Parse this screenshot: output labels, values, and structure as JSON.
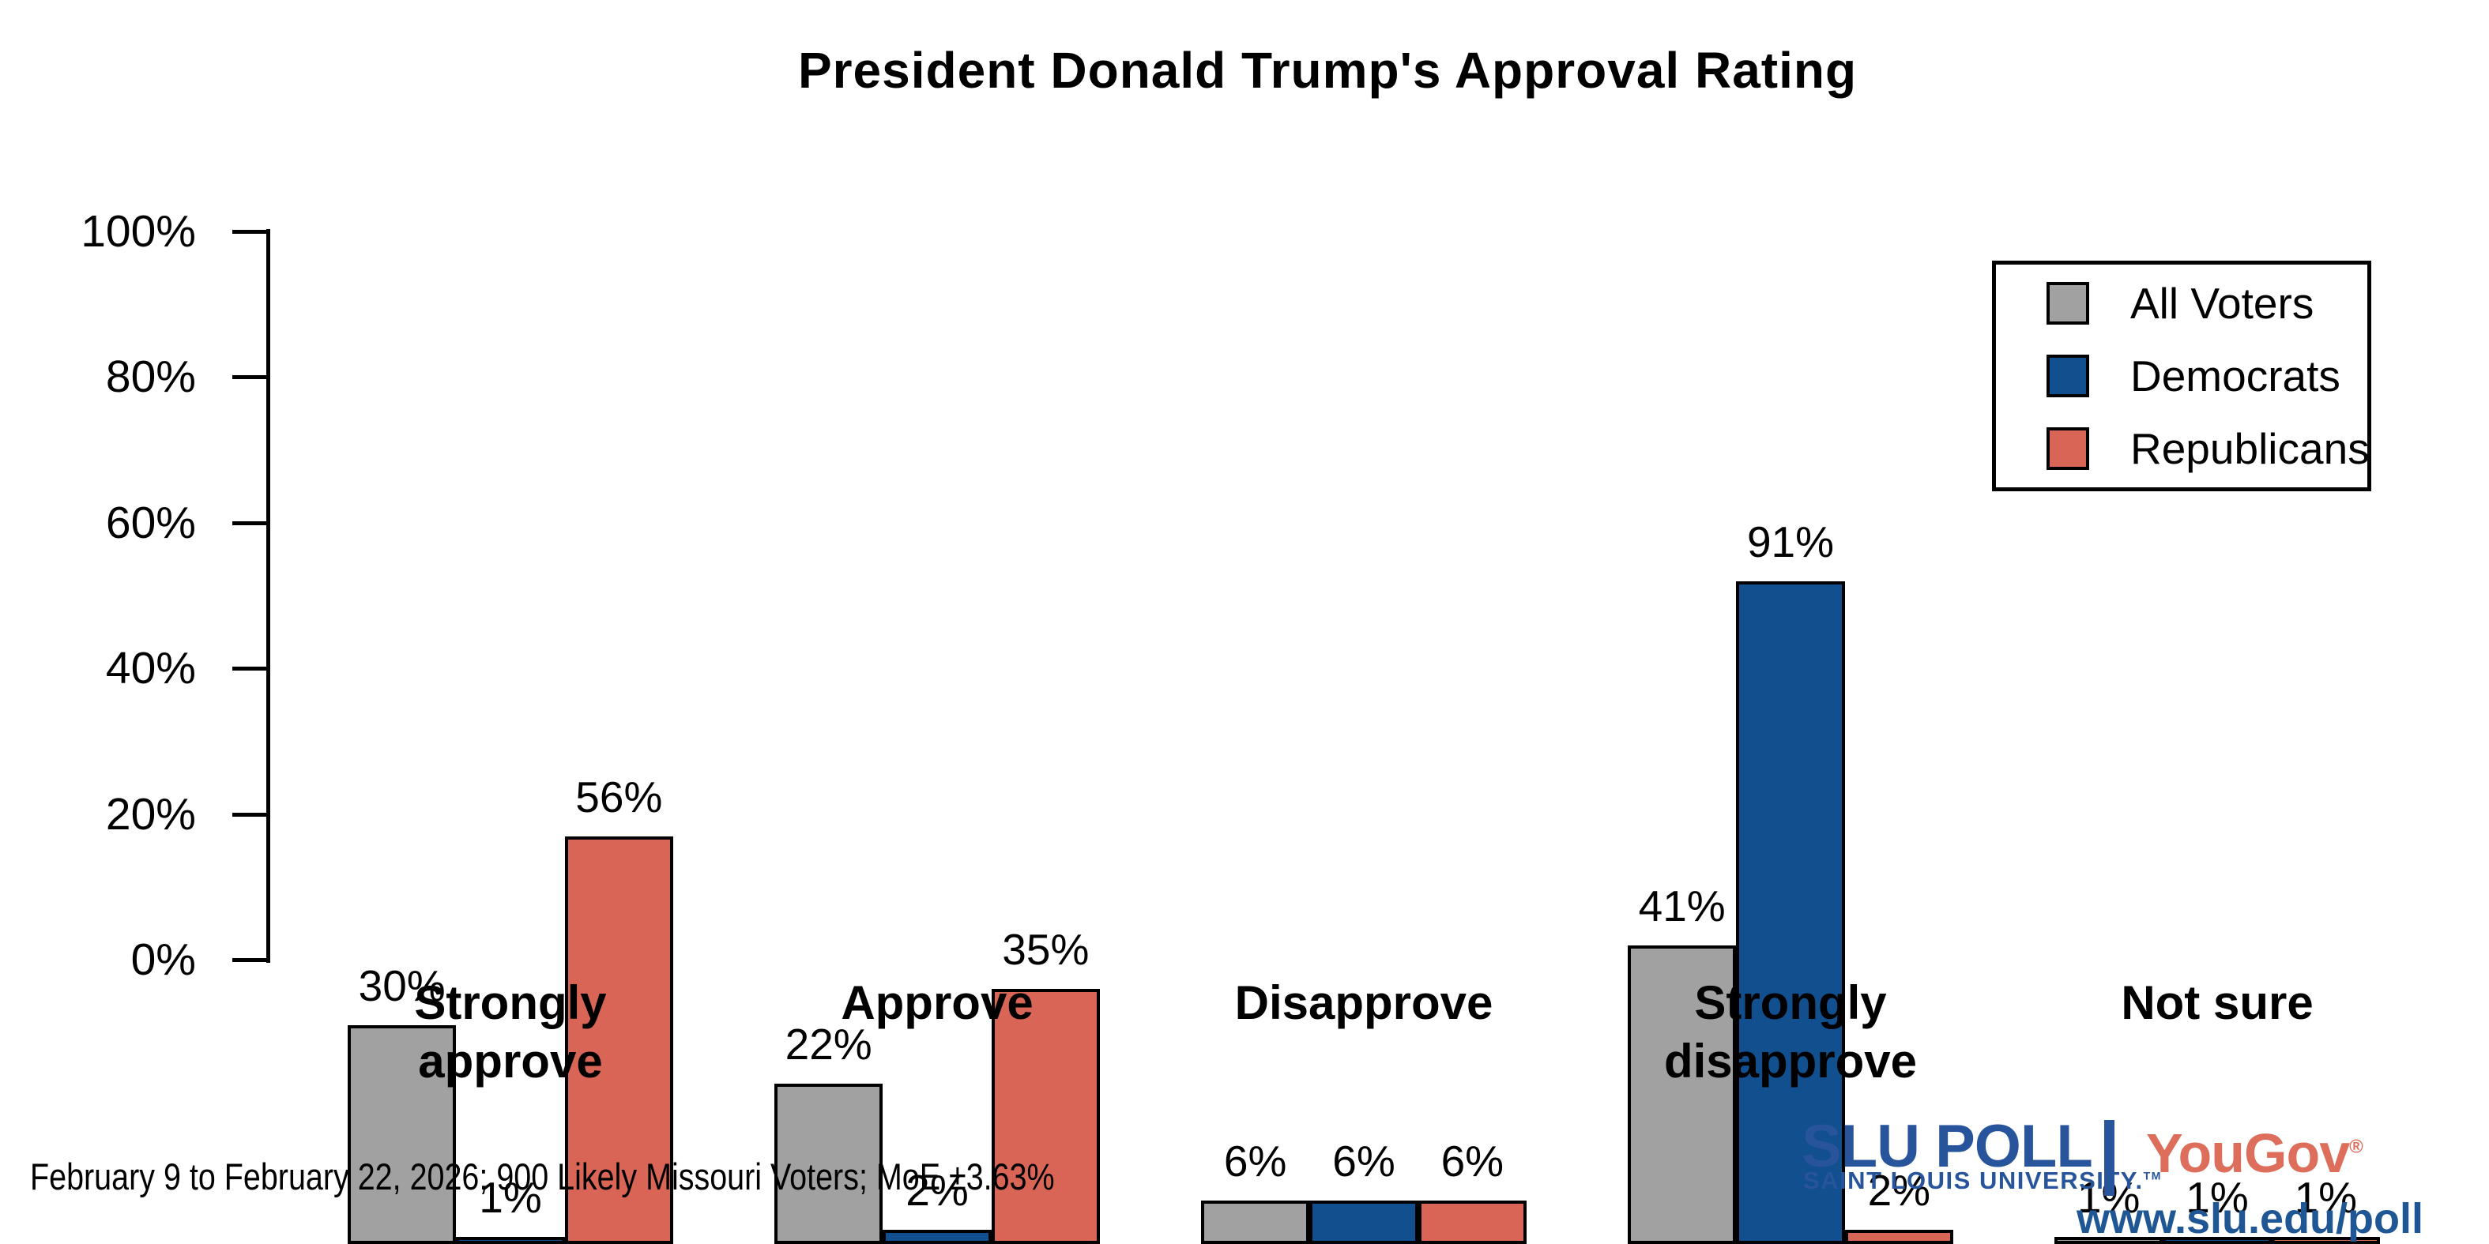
{
  "title": "President Donald Trump's Approval Rating",
  "footer": "February 9 to February 22, 2026; 900 Likely Missouri Voters; MoE ±3.63%",
  "branding": {
    "slu_name": "SLU POLL",
    "slu_sub": "SAINT LOUIS UNIVERSITY.",
    "slu_trademark": "TM",
    "separator": "|",
    "partner": "YouGov",
    "partner_mark": "®",
    "url": "www.slu.edu/poll",
    "slu_blue": "#27549B",
    "url_blue": "#1F5795",
    "yougov_red": "#DC6E5B"
  },
  "chart_data": {
    "type": "bar",
    "title": "President Donald Trump's Approval Rating",
    "categories": [
      "Strongly approve",
      "Approve",
      "Disapprove",
      "Strongly disapprove",
      "Not sure"
    ],
    "series": [
      {
        "name": "All Voters",
        "color": "#A1A1A1",
        "values": [
          30,
          22,
          6,
          41,
          1
        ]
      },
      {
        "name": "Democrats",
        "color": "#114F8F",
        "values": [
          1,
          2,
          6,
          91,
          1
        ]
      },
      {
        "name": "Republicans",
        "color": "#D96557",
        "values": [
          56,
          35,
          6,
          2,
          1
        ]
      }
    ],
    "xlabel": "",
    "ylabel": "",
    "ylim": [
      0,
      100
    ],
    "y_ticks": [
      "0%",
      "20%",
      "40%",
      "60%",
      "80%",
      "100%"
    ],
    "value_suffix": "%",
    "bar_border_color": "#000000",
    "grid": false,
    "legend_position": "top-right"
  }
}
